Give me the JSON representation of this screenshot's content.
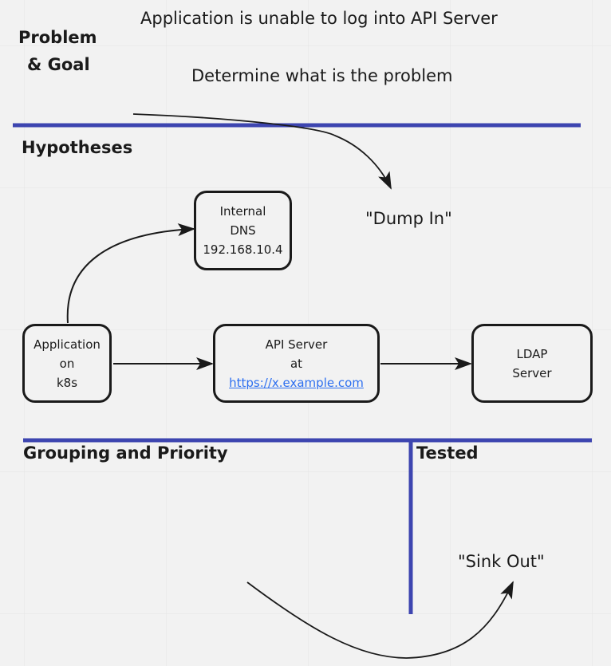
{
  "sections": {
    "problem_goal": [
      "Problem",
      "& Goal"
    ],
    "hypotheses": "Hypotheses",
    "grouping": "Grouping and Priority",
    "tested": "Tested"
  },
  "problem_statement": "Application is unable to log into API Server",
  "goal_statement": "Determine what is the problem",
  "dump_in": "\"Dump In\"",
  "sink_out": "\"Sink Out\"",
  "nodes": {
    "dns": [
      "Internal",
      "DNS",
      "192.168.10.4"
    ],
    "app": [
      "Application",
      "on",
      "k8s"
    ],
    "api": [
      "API Server",
      "at",
      "https://x.example.com"
    ],
    "ldap": [
      "LDAP",
      "Server"
    ]
  },
  "colors": {
    "divider": "#3d45b0",
    "link": "#2d6ff0",
    "background": "#f2f2f2"
  }
}
